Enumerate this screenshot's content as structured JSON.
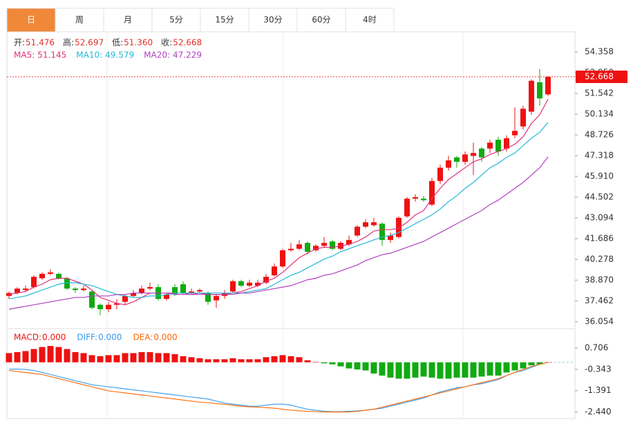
{
  "tabs": {
    "items": [
      "日",
      "周",
      "月",
      "5分",
      "15分",
      "30分",
      "60分",
      "4时"
    ],
    "active": 0
  },
  "chart_data": [
    {
      "type": "candlestick",
      "up_color": "#ee1111",
      "down_color": "#11aa11",
      "quote": [
        {
          "label": "开:",
          "value": 51.476
        },
        {
          "label": "高:",
          "value": 52.697
        },
        {
          "label": "低:",
          "value": {
            "value": 51.36,
            "label": "51.360"
          }
        },
        {
          "label": "收:",
          "value": 52.668
        }
      ],
      "open": [
        37.8,
        38.0,
        38.2,
        38.4,
        39.0,
        39.3,
        39.3,
        39.0,
        38.3,
        38.2,
        38.1,
        37.2,
        36.9,
        37.2,
        37.4,
        37.8,
        38.0,
        38.3,
        38.4,
        37.6,
        38.4,
        38.6,
        38.0,
        38.1,
        38.0,
        37.5,
        37.8,
        38.1,
        38.8,
        38.5,
        38.5,
        38.7,
        39.2,
        39.8,
        40.9,
        41.0,
        41.4,
        40.9,
        41.2,
        41.5,
        41.0,
        41.3,
        41.9,
        42.5,
        42.6,
        42.7,
        41.6,
        41.8,
        43.2,
        44.4,
        44.4,
        44.0,
        45.6,
        46.5,
        47.2,
        46.9,
        47.3,
        47.8,
        47.8,
        48.4,
        47.8,
        48.7,
        49.3,
        50.3,
        52.3,
        51.476
      ],
      "high": [
        38.1,
        38.4,
        38.5,
        39.2,
        39.4,
        39.6,
        39.4,
        39.1,
        38.4,
        38.5,
        38.2,
        37.3,
        37.4,
        37.6,
        37.9,
        38.2,
        38.5,
        38.7,
        38.6,
        38.0,
        38.6,
        38.8,
        38.3,
        38.3,
        38.1,
        37.9,
        38.2,
        38.9,
        38.9,
        38.9,
        38.9,
        39.3,
        40.0,
        41.0,
        41.4,
        41.6,
        41.5,
        41.3,
        41.8,
        41.6,
        41.5,
        41.9,
        42.6,
        43.0,
        43.1,
        42.8,
        42.1,
        43.2,
        44.5,
        44.7,
        44.6,
        45.8,
        46.7,
        47.3,
        47.3,
        47.6,
        48.2,
        47.9,
        48.4,
        48.6,
        48.7,
        50.6,
        50.7,
        52.5,
        53.2,
        52.697
      ],
      "low": [
        37.6,
        37.9,
        38.1,
        38.3,
        38.9,
        39.2,
        38.9,
        38.2,
        38.0,
        38.1,
        36.9,
        36.5,
        36.7,
        36.9,
        37.2,
        37.7,
        37.9,
        38.2,
        37.5,
        37.5,
        37.8,
        37.9,
        37.9,
        38.0,
        37.2,
        37.0,
        37.6,
        38.0,
        38.4,
        38.4,
        38.4,
        38.6,
        39.1,
        39.7,
        40.8,
        40.9,
        40.6,
        40.8,
        41.1,
        40.9,
        40.9,
        41.2,
        41.8,
        42.4,
        42.5,
        41.2,
        41.4,
        41.7,
        43.1,
        44.2,
        44.2,
        43.9,
        45.4,
        46.3,
        46.5,
        46.7,
        46.0,
        46.9,
        47.5,
        47.3,
        47.6,
        48.5,
        49.1,
        50.1,
        50.7,
        51.36
      ],
      "close": [
        38.0,
        38.3,
        38.3,
        39.1,
        39.3,
        39.4,
        39.0,
        38.3,
        38.2,
        38.3,
        37.0,
        36.9,
        37.2,
        37.3,
        37.8,
        38.0,
        38.3,
        38.4,
        37.6,
        37.9,
        37.9,
        38.0,
        38.1,
        38.2,
        37.4,
        37.8,
        38.0,
        38.8,
        38.5,
        38.7,
        38.7,
        39.1,
        39.8,
        40.9,
        41.0,
        41.3,
        40.8,
        41.2,
        41.4,
        41.0,
        41.4,
        41.6,
        42.5,
        42.8,
        42.8,
        41.6,
        41.9,
        43.1,
        44.4,
        44.5,
        44.3,
        45.6,
        46.5,
        47.0,
        46.9,
        47.4,
        47.5,
        47.2,
        48.2,
        47.6,
        48.5,
        49.0,
        50.5,
        52.4,
        51.2,
        52.668
      ],
      "series": [
        {
          "name": "MA5:",
          "color": "#e0307a",
          "values": [
            37.9,
            38.0,
            38.1,
            38.4,
            38.6,
            38.9,
            39.0,
            39.0,
            38.8,
            38.6,
            38.2,
            37.7,
            37.5,
            37.3,
            37.2,
            37.4,
            37.7,
            38.0,
            38.0,
            38.0,
            38.0,
            38.0,
            37.9,
            38.0,
            37.9,
            37.9,
            37.9,
            38.0,
            38.1,
            38.3,
            38.5,
            38.8,
            39.0,
            39.4,
            39.9,
            40.4,
            40.7,
            41.0,
            41.1,
            41.1,
            41.2,
            41.3,
            41.5,
            41.8,
            42.2,
            42.3,
            42.3,
            42.4,
            42.8,
            43.3,
            43.6,
            44.4,
            45.1,
            45.7,
            46.1,
            46.5,
            46.9,
            47.1,
            47.4,
            47.6,
            47.8,
            48.1,
            48.6,
            49.5,
            50.1,
            51.145
          ]
        },
        {
          "name": "MA10:",
          "color": "#22b8d8",
          "values": [
            37.6,
            37.7,
            37.8,
            38.0,
            38.2,
            38.4,
            38.6,
            38.7,
            38.7,
            38.6,
            38.5,
            38.3,
            38.1,
            37.9,
            37.8,
            37.7,
            37.7,
            37.8,
            37.8,
            37.9,
            38.0,
            38.0,
            38.0,
            38.0,
            38.0,
            38.0,
            38.0,
            38.0,
            38.0,
            38.1,
            38.2,
            38.3,
            38.6,
            38.9,
            39.2,
            39.4,
            39.7,
            40.0,
            40.3,
            40.5,
            40.8,
            41.0,
            41.2,
            41.4,
            41.6,
            41.8,
            41.9,
            42.1,
            42.4,
            42.7,
            43.0,
            43.3,
            43.7,
            44.2,
            44.6,
            45.1,
            45.5,
            46.0,
            46.5,
            46.8,
            47.2,
            47.5,
            48.0,
            48.5,
            48.9,
            49.579
          ]
        },
        {
          "name": "MA20:",
          "color": "#b040c0",
          "values": [
            36.9,
            37.0,
            37.1,
            37.2,
            37.3,
            37.4,
            37.5,
            37.6,
            37.7,
            37.7,
            37.8,
            37.8,
            37.8,
            37.9,
            37.9,
            38.0,
            38.0,
            38.0,
            38.0,
            38.0,
            37.9,
            37.9,
            37.9,
            37.9,
            37.9,
            37.9,
            37.9,
            37.9,
            38.0,
            38.0,
            38.1,
            38.2,
            38.3,
            38.4,
            38.5,
            38.7,
            38.9,
            39.0,
            39.2,
            39.3,
            39.5,
            39.7,
            39.9,
            40.2,
            40.4,
            40.6,
            40.7,
            40.9,
            41.1,
            41.3,
            41.5,
            41.8,
            42.1,
            42.4,
            42.7,
            43.0,
            43.3,
            43.6,
            44.0,
            44.3,
            44.7,
            45.1,
            45.5,
            46.0,
            46.5,
            47.229
          ]
        }
      ],
      "ylim": [
        35.585,
        55.72
      ],
      "yticks": [
        36.054,
        37.462,
        {
          "value": 38.87,
          "label": "38.870"
        },
        40.278,
        41.686,
        43.094,
        44.502,
        {
          "value": 45.91,
          "label": "45.910"
        },
        47.318,
        48.726,
        50.134,
        51.542,
        {
          "value": 52.95,
          "label": "52.950"
        },
        54.358
      ]
    },
    {
      "type": "macd",
      "up_color": "#ee1111",
      "down_color": "#11aa11",
      "legend": [
        {
          "label": "MACD:",
          "color": "#ee1111",
          "value": {
            "value": 0,
            "label": "0.000"
          }
        },
        {
          "label": "DIFF:",
          "color": "#3399ee",
          "value": {
            "value": 0,
            "label": "0.000"
          }
        },
        {
          "label": "DEA:",
          "color": "#ff6600",
          "value": {
            "value": 0,
            "label": "0.000"
          }
        }
      ],
      "macd": [
        0.45,
        0.5,
        0.55,
        0.65,
        0.75,
        0.8,
        0.75,
        0.65,
        0.5,
        0.45,
        0.35,
        0.3,
        0.35,
        0.35,
        0.45,
        0.45,
        0.5,
        0.5,
        0.45,
        0.45,
        0.4,
        0.3,
        0.25,
        0.2,
        0.15,
        0.15,
        0.15,
        0.2,
        0.15,
        0.15,
        0.15,
        0.25,
        0.3,
        0.35,
        0.3,
        0.25,
        0.1,
        0.02,
        -0.05,
        -0.1,
        -0.2,
        -0.3,
        -0.35,
        -0.4,
        -0.55,
        -0.65,
        -0.75,
        -0.8,
        -0.8,
        -0.75,
        -0.7,
        -0.75,
        -0.8,
        -0.8,
        -0.75,
        -0.75,
        -0.75,
        -0.7,
        -0.65,
        -0.65,
        -0.5,
        -0.4,
        -0.3,
        -0.15,
        -0.1,
        0
      ],
      "diff": [
        -0.34,
        -0.33,
        -0.35,
        -0.4,
        -0.5,
        -0.6,
        -0.7,
        -0.8,
        -0.9,
        -1.0,
        -1.1,
        -1.15,
        -1.2,
        -1.25,
        -1.3,
        -1.35,
        -1.4,
        -1.45,
        -1.5,
        -1.55,
        -1.6,
        -1.65,
        -1.7,
        -1.75,
        -1.8,
        -1.9,
        -2.0,
        -2.05,
        -2.1,
        -2.15,
        -2.15,
        -2.1,
        -2.05,
        -2.05,
        -2.1,
        -2.2,
        -2.3,
        -2.35,
        -2.4,
        -2.42,
        -2.42,
        -2.4,
        -2.38,
        -2.35,
        -2.3,
        -2.25,
        -2.15,
        -2.05,
        -1.95,
        -1.85,
        -1.75,
        -1.6,
        -1.45,
        -1.35,
        -1.25,
        -1.2,
        -1.1,
        -1.05,
        -0.95,
        -0.85,
        -0.65,
        -0.5,
        -0.4,
        -0.25,
        -0.1,
        0
      ],
      "dea": [
        -0.4,
        -0.45,
        -0.5,
        -0.55,
        -0.6,
        -0.7,
        -0.8,
        -0.9,
        -1.0,
        -1.1,
        -1.2,
        -1.3,
        -1.4,
        -1.45,
        -1.5,
        -1.55,
        -1.6,
        -1.65,
        -1.7,
        -1.75,
        -1.8,
        -1.85,
        -1.9,
        -1.95,
        -1.98,
        -2.02,
        -2.06,
        -2.1,
        -2.15,
        -2.18,
        -2.2,
        -2.22,
        -2.25,
        -2.3,
        -2.34,
        -2.38,
        -2.4,
        -2.42,
        -2.43,
        -2.44,
        -2.44,
        -2.43,
        -2.4,
        -2.35,
        -2.3,
        -2.2,
        -2.1,
        -2.0,
        -1.9,
        -1.8,
        -1.7,
        -1.6,
        -1.5,
        -1.4,
        -1.3,
        -1.2,
        -1.1,
        -1.0,
        -0.9,
        -0.8,
        -0.65,
        -0.5,
        -0.35,
        -0.2,
        -0.1,
        0
      ],
      "ylim": [
        -2.755,
        1.65
      ],
      "yticks": [
        0.706,
        -0.343,
        -1.391,
        {
          "value": -2.44,
          "label": "-2.440"
        }
      ]
    }
  ]
}
